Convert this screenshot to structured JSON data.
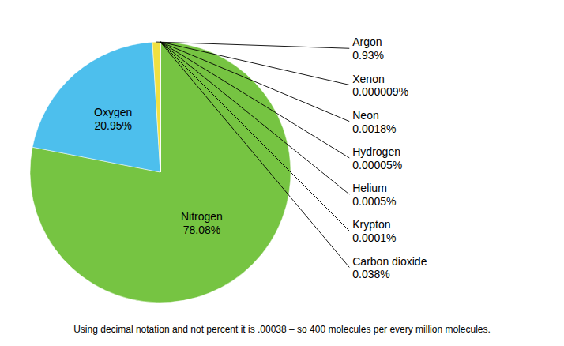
{
  "chart_data": {
    "type": "pie",
    "categories": [
      "Nitrogen",
      "Oxygen",
      "Argon",
      "Carbon dioxide",
      "Krypton",
      "Helium",
      "Hydrogen",
      "Neon",
      "Xenon"
    ],
    "values": [
      78.08,
      20.95,
      0.93,
      0.038,
      0.0001,
      0.0005,
      5e-05,
      0.0018,
      9e-06
    ],
    "value_labels": [
      "78.08%",
      "20.95%",
      "0.93%",
      "0.038%",
      "0.0001%",
      "0.0005%",
      "0.00005%",
      "0.0018%",
      "0.000009%"
    ],
    "colors": [
      "#76c442",
      "#4dbfed",
      "#f0e040",
      "#8B7000",
      "#b0b0b0",
      "#c09000",
      "#909090",
      "#c0c0c0",
      "#808080"
    ],
    "data_labels": true,
    "annotations": [
      "Using decimal notation and not percent it is .00038 – so 400 molecules per every million molecules."
    ]
  }
}
